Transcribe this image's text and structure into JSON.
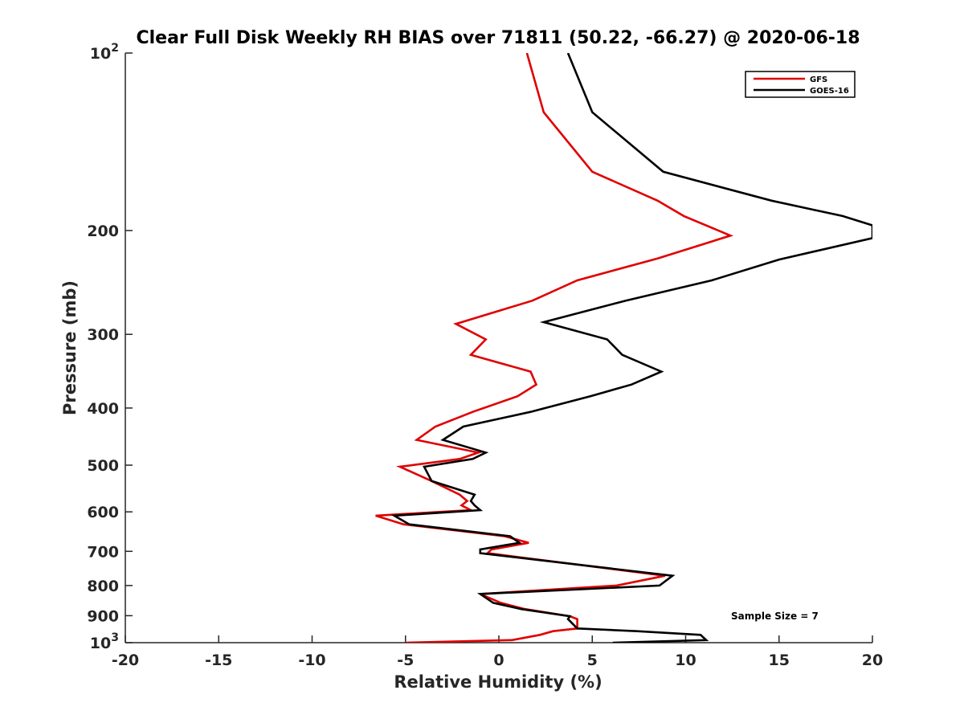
{
  "chart_data": {
    "type": "line",
    "title": "Clear Full Disk Weekly RH BIAS over 71811 (50.22, -66.27) @ 2020-06-18",
    "xlabel": "Relative Humidity (%)",
    "ylabel": "Pressure (mb)",
    "xlim": [
      -20,
      20
    ],
    "ylim": [
      100,
      1000
    ],
    "y_scale": "log",
    "y_reversed": true,
    "grid": false,
    "legend_position": "top-right",
    "annotation": "Sample Size = 7",
    "x_ticks": [
      "-20",
      "-15",
      "-10",
      "-5",
      "0",
      "5",
      "10",
      "15",
      "20"
    ],
    "y_ticks": [
      {
        "value": 100,
        "base": "10",
        "exp": "2"
      },
      {
        "value": 200,
        "label": "200"
      },
      {
        "value": 300,
        "label": "300"
      },
      {
        "value": 400,
        "label": "400"
      },
      {
        "value": 500,
        "label": "500"
      },
      {
        "value": 600,
        "label": "600"
      },
      {
        "value": 700,
        "label": "700"
      },
      {
        "value": 800,
        "label": "800"
      },
      {
        "value": 900,
        "label": "900"
      },
      {
        "value": 1000,
        "base": "10",
        "exp": "3"
      }
    ],
    "series": [
      {
        "name": "GFS",
        "color": "#e00000",
        "points": [
          [
            1.5,
            100
          ],
          [
            2.4,
            126
          ],
          [
            5.0,
            159
          ],
          [
            8.5,
            178
          ],
          [
            9.9,
            189
          ],
          [
            12.4,
            204
          ],
          [
            8.5,
            223
          ],
          [
            4.2,
            243
          ],
          [
            1.8,
            263
          ],
          [
            -2.3,
            288
          ],
          [
            -0.7,
            306
          ],
          [
            -1.5,
            325
          ],
          [
            1.7,
            347
          ],
          [
            2.0,
            365
          ],
          [
            1.0,
            382
          ],
          [
            -1.4,
            406
          ],
          [
            -3.4,
            430
          ],
          [
            -4.4,
            453
          ],
          [
            -1.1,
            476
          ],
          [
            -2.1,
            488
          ],
          [
            -5.3,
            503
          ],
          [
            -3.6,
            532
          ],
          [
            -2.1,
            561
          ],
          [
            -1.7,
            575
          ],
          [
            -2.0,
            585
          ],
          [
            -1.5,
            596
          ],
          [
            -6.6,
            609
          ],
          [
            -5.1,
            630
          ],
          [
            0.3,
            660
          ],
          [
            1.6,
            677
          ],
          [
            -0.4,
            695
          ],
          [
            -0.6,
            705
          ],
          [
            8.9,
            770
          ],
          [
            6.3,
            800
          ],
          [
            -1.0,
            827
          ],
          [
            0.1,
            856
          ],
          [
            1.4,
            877
          ],
          [
            3.8,
            902
          ],
          [
            4.2,
            912
          ],
          [
            4.2,
            946
          ],
          [
            2.9,
            956
          ],
          [
            2.2,
            970
          ],
          [
            0.7,
            990
          ],
          [
            -5.0,
            1000
          ]
        ]
      },
      {
        "name": "GOES-16",
        "color": "#000000",
        "points": [
          [
            3.7,
            100
          ],
          [
            5.0,
            126
          ],
          [
            8.8,
            159
          ],
          [
            14.6,
            178
          ],
          [
            18.4,
            189
          ],
          [
            20.0,
            196
          ],
          [
            20.0,
            206
          ],
          [
            15.0,
            224
          ],
          [
            11.4,
            243
          ],
          [
            6.8,
            263
          ],
          [
            2.4,
            286
          ],
          [
            5.8,
            306
          ],
          [
            6.6,
            325
          ],
          [
            8.7,
            347
          ],
          [
            7.1,
            365
          ],
          [
            4.9,
            382
          ],
          [
            1.7,
            406
          ],
          [
            -1.9,
            430
          ],
          [
            -3.0,
            453
          ],
          [
            -0.7,
            476
          ],
          [
            -1.4,
            488
          ],
          [
            -4.0,
            503
          ],
          [
            -3.6,
            532
          ],
          [
            -1.3,
            561
          ],
          [
            -1.5,
            575
          ],
          [
            -1.3,
            585
          ],
          [
            -1.0,
            596
          ],
          [
            -5.6,
            609
          ],
          [
            -4.8,
            630
          ],
          [
            0.6,
            660
          ],
          [
            1.1,
            677
          ],
          [
            -1.0,
            695
          ],
          [
            -1.0,
            705
          ],
          [
            9.3,
            770
          ],
          [
            8.6,
            800
          ],
          [
            -1.0,
            827
          ],
          [
            -0.3,
            856
          ],
          [
            1.2,
            877
          ],
          [
            3.8,
            902
          ],
          [
            3.7,
            912
          ],
          [
            4.2,
            946
          ],
          [
            7.4,
            956
          ],
          [
            10.8,
            970
          ],
          [
            11.1,
            990
          ],
          [
            6.1,
            1000
          ]
        ]
      }
    ]
  }
}
